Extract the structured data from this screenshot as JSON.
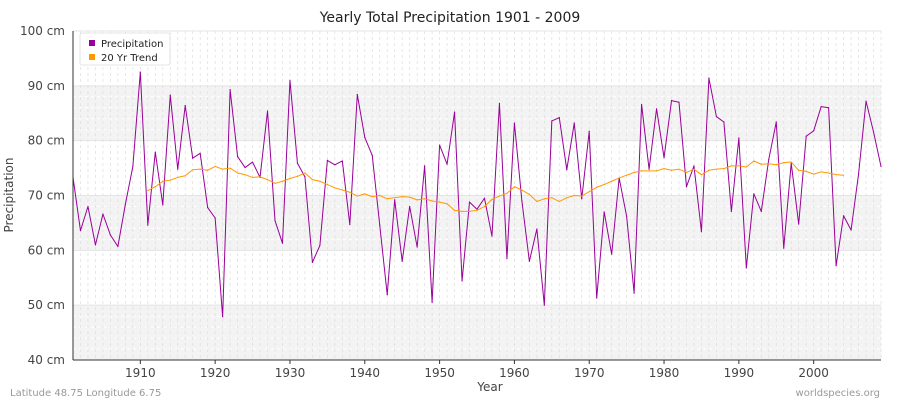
{
  "chart_data": {
    "type": "line",
    "title": "Yearly Total Precipitation 1901 - 2009",
    "xlabel": "Year",
    "ylabel": "Precipitation",
    "xlim": [
      1901,
      2009
    ],
    "ylim": [
      40,
      100
    ],
    "y_ticks": [
      40,
      50,
      60,
      70,
      80,
      90,
      100
    ],
    "y_tick_labels": [
      "40 cm",
      "50 cm",
      "60 cm",
      "70 cm",
      "80 cm",
      "90 cm",
      "100 cm"
    ],
    "x_ticks": [
      1910,
      1920,
      1930,
      1940,
      1950,
      1960,
      1970,
      1980,
      1990,
      2000
    ],
    "x_tick_labels": [
      "1910",
      "1920",
      "1930",
      "1940",
      "1950",
      "1960",
      "1970",
      "1980",
      "1990",
      "2000"
    ],
    "grid": true,
    "legend_position": "top-left",
    "series": [
      {
        "name": "Precipitation",
        "color": "#990099",
        "x_start": 1901,
        "values": [
          73.3,
          63.6,
          68.0,
          61.0,
          66.6,
          62.8,
          60.7,
          68.4,
          75.3,
          92.5,
          64.6,
          77.9,
          68.3,
          88.3,
          74.8,
          86.4,
          76.8,
          77.7,
          67.8,
          65.9,
          47.9,
          89.3,
          77.1,
          75.1,
          76.1,
          73.3,
          85.4,
          65.4,
          61.3,
          91.0,
          75.9,
          73.4,
          57.8,
          60.9,
          76.4,
          75.6,
          76.3,
          64.7,
          88.4,
          80.6,
          77.3,
          64.6,
          51.9,
          69.2,
          58.0,
          68.0,
          60.6,
          75.4,
          50.5,
          79.2,
          75.7,
          85.2,
          54.4,
          68.8,
          67.5,
          69.5,
          62.6,
          86.8,
          58.5,
          83.2,
          69.0,
          58.0,
          63.9,
          50.0,
          83.6,
          84.2,
          74.7,
          83.2,
          69.4,
          81.7,
          51.3,
          67.0,
          59.3,
          73.2,
          66.2,
          52.2,
          86.6,
          74.8,
          85.8,
          76.9,
          87.3,
          87.0,
          71.6,
          75.4,
          63.4,
          91.4,
          84.4,
          83.4,
          67.1,
          80.5,
          56.8,
          70.3,
          67.1,
          76.6,
          83.4,
          60.4,
          75.9,
          64.8,
          80.8,
          81.8,
          86.2,
          86.0,
          57.2,
          66.3,
          63.7,
          73.9,
          87.2,
          81.6,
          75.3
        ]
      },
      {
        "name": "20 Yr Trend",
        "color": "#ff9900",
        "x_start": 1911,
        "values": [
          70.9,
          71.6,
          72.6,
          72.8,
          73.3,
          73.6,
          74.7,
          74.8,
          74.6,
          75.3,
          74.8,
          75.0,
          74.1,
          73.8,
          73.3,
          73.4,
          72.9,
          72.2,
          72.6,
          73.1,
          73.5,
          74.1,
          72.9,
          72.6,
          72.0,
          71.4,
          71.0,
          70.6,
          69.9,
          70.3,
          69.8,
          70.0,
          69.4,
          69.6,
          69.8,
          69.7,
          69.2,
          69.4,
          69.0,
          68.8,
          68.5,
          67.3,
          67.1,
          67.1,
          67.3,
          68.0,
          69.3,
          69.9,
          70.4,
          71.6,
          71.0,
          70.2,
          68.9,
          69.4,
          69.6,
          68.9,
          69.6,
          70.0,
          69.9,
          70.7,
          71.5,
          72.0,
          72.6,
          73.2,
          73.7,
          74.2,
          74.5,
          74.5,
          74.5,
          74.9,
          74.6,
          74.8,
          74.2,
          74.8,
          73.8,
          74.6,
          74.8,
          74.9,
          75.4,
          75.4,
          75.2,
          76.3,
          75.7,
          75.8,
          75.6,
          76.0,
          76.1,
          74.6,
          74.4,
          73.9,
          74.3,
          74.1,
          73.8,
          73.7
        ]
      }
    ]
  },
  "footer": {
    "left": "Latitude 48.75 Longitude 6.75",
    "right": "worldspecies.org"
  }
}
